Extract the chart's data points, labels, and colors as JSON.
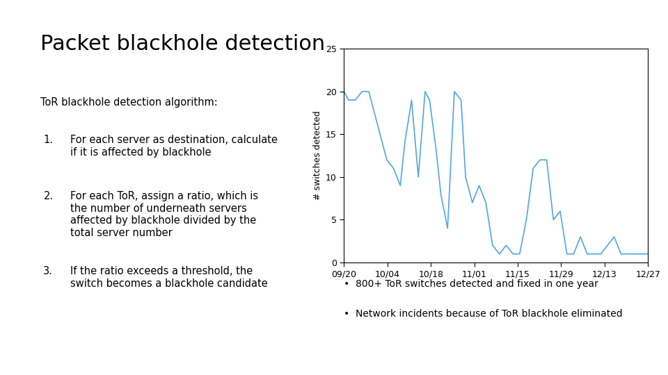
{
  "title": "Packet blackhole detection",
  "title_fontsize": 22,
  "background_color": "#ffffff",
  "left_text_header": "ToR blackhole detection algorithm:",
  "left_items": [
    "For each server as destination, calculate\nif it is affected by blackhole",
    "For each ToR, assign a ratio, which is\nthe number of underneath servers\naffected by blackhole divided by the\ntotal server number",
    "If the ratio exceeds a threshold, the\nswitch becomes a blackhole candidate"
  ],
  "bullet_labels": [
    "1.",
    "2.",
    "3."
  ],
  "bottom_bullets": [
    "800+ ToR switches detected and fixed in one year",
    "Network incidents because of ToR blackhole eliminated"
  ],
  "line_color": "#4da6e8",
  "ylabel": "# switches detected",
  "ylim": [
    0,
    25
  ],
  "yticks": [
    0,
    5,
    10,
    15,
    20,
    25
  ],
  "xtick_labels": [
    "09/20",
    "10/04",
    "10/18",
    "11/01",
    "11/15",
    "11/29",
    "12/13",
    "12/27"
  ],
  "x_values": [
    0,
    2,
    5,
    8,
    11,
    13,
    16,
    19,
    22,
    25,
    27,
    30,
    33,
    36,
    38,
    41,
    43,
    46,
    49,
    52,
    54,
    57,
    60,
    63,
    66,
    69,
    72,
    75,
    78,
    81,
    84,
    87,
    90,
    93,
    96,
    99,
    102,
    105,
    108,
    111,
    114,
    117,
    120,
    123,
    126,
    129,
    132,
    135
  ],
  "y_values": [
    20,
    19,
    19,
    20,
    20,
    18,
    15,
    12,
    11,
    9,
    14,
    19,
    10,
    20,
    19,
    13,
    8,
    4,
    20,
    19,
    10,
    7,
    9,
    7,
    2,
    1,
    2,
    1,
    1,
    5,
    11,
    12,
    12,
    5,
    6,
    1,
    1,
    3,
    1,
    1,
    1,
    2,
    3,
    1,
    1,
    1,
    1,
    1
  ]
}
